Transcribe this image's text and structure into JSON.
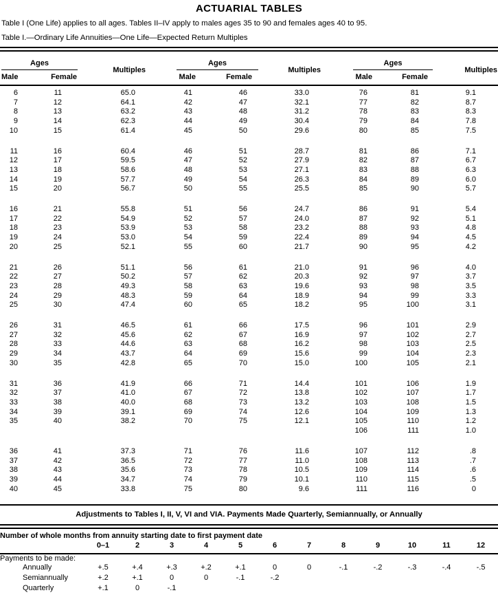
{
  "title": "ACTUARIAL TABLES",
  "note": "Table I (One Life) applies to all ages. Tables II–IV apply to males ages 35 to 90 and females ages 40 to 95.",
  "table1": {
    "caption": "Table I.—Ordinary Life Annuities—One Life—Expected Return Multiples",
    "headers": {
      "ages": "Ages",
      "male": "Male",
      "female": "Female",
      "multiples": "Multiples"
    },
    "column_order": [
      "male",
      "female",
      "multiples",
      "male",
      "female",
      "multiples",
      "male",
      "female",
      "multiples"
    ],
    "blocks": [
      [
        [
          "6",
          "11",
          "65.0",
          "41",
          "46",
          "33.0",
          "76",
          "81",
          "9.1"
        ],
        [
          "7",
          "12",
          "64.1",
          "42",
          "47",
          "32.1",
          "77",
          "82",
          "8.7"
        ],
        [
          "8",
          "13",
          "63.2",
          "43",
          "48",
          "31.2",
          "78",
          "83",
          "8.3"
        ],
        [
          "9",
          "14",
          "62.3",
          "44",
          "49",
          "30.4",
          "79",
          "84",
          "7.8"
        ],
        [
          "10",
          "15",
          "61.4",
          "45",
          "50",
          "29.6",
          "80",
          "85",
          "7.5"
        ]
      ],
      [
        [
          "11",
          "16",
          "60.4",
          "46",
          "51",
          "28.7",
          "81",
          "86",
          "7.1"
        ],
        [
          "12",
          "17",
          "59.5",
          "47",
          "52",
          "27.9",
          "82",
          "87",
          "6.7"
        ],
        [
          "13",
          "18",
          "58.6",
          "48",
          "53",
          "27.1",
          "83",
          "88",
          "6.3"
        ],
        [
          "14",
          "19",
          "57.7",
          "49",
          "54",
          "26.3",
          "84",
          "89",
          "6.0"
        ],
        [
          "15",
          "20",
          "56.7",
          "50",
          "55",
          "25.5",
          "85",
          "90",
          "5.7"
        ]
      ],
      [
        [
          "16",
          "21",
          "55.8",
          "51",
          "56",
          "24.7",
          "86",
          "91",
          "5.4"
        ],
        [
          "17",
          "22",
          "54.9",
          "52",
          "57",
          "24.0",
          "87",
          "92",
          "5.1"
        ],
        [
          "18",
          "23",
          "53.9",
          "53",
          "58",
          "23.2",
          "88",
          "93",
          "4.8"
        ],
        [
          "19",
          "24",
          "53.0",
          "54",
          "59",
          "22.4",
          "89",
          "94",
          "4.5"
        ],
        [
          "20",
          "25",
          "52.1",
          "55",
          "60",
          "21.7",
          "90",
          "95",
          "4.2"
        ]
      ],
      [
        [
          "21",
          "26",
          "51.1",
          "56",
          "61",
          "21.0",
          "91",
          "96",
          "4.0"
        ],
        [
          "22",
          "27",
          "50.2",
          "57",
          "62",
          "20.3",
          "92",
          "97",
          "3.7"
        ],
        [
          "23",
          "28",
          "49.3",
          "58",
          "63",
          "19.6",
          "93",
          "98",
          "3.5"
        ],
        [
          "24",
          "29",
          "48.3",
          "59",
          "64",
          "18.9",
          "94",
          "99",
          "3.3"
        ],
        [
          "25",
          "30",
          "47.4",
          "60",
          "65",
          "18.2",
          "95",
          "100",
          "3.1"
        ]
      ],
      [
        [
          "26",
          "31",
          "46.5",
          "61",
          "66",
          "17.5",
          "96",
          "101",
          "2.9"
        ],
        [
          "27",
          "32",
          "45.6",
          "62",
          "67",
          "16.9",
          "97",
          "102",
          "2.7"
        ],
        [
          "28",
          "33",
          "44.6",
          "63",
          "68",
          "16.2",
          "98",
          "103",
          "2.5"
        ],
        [
          "29",
          "34",
          "43.7",
          "64",
          "69",
          "15.6",
          "99",
          "104",
          "2.3"
        ],
        [
          "30",
          "35",
          "42.8",
          "65",
          "70",
          "15.0",
          "100",
          "105",
          "2.1"
        ]
      ],
      [
        [
          "31",
          "36",
          "41.9",
          "66",
          "71",
          "14.4",
          "101",
          "106",
          "1.9"
        ],
        [
          "32",
          "37",
          "41.0",
          "67",
          "72",
          "13.8",
          "102",
          "107",
          "1.7"
        ],
        [
          "33",
          "38",
          "40.0",
          "68",
          "73",
          "13.2",
          "103",
          "108",
          "1.5"
        ],
        [
          "34",
          "39",
          "39.1",
          "69",
          "74",
          "12.6",
          "104",
          "109",
          "1.3"
        ],
        [
          "35",
          "40",
          "38.2",
          "70",
          "75",
          "12.1",
          "105",
          "110",
          "1.2"
        ],
        [
          "",
          "",
          "",
          "",
          "",
          "",
          "106",
          "111",
          "1.0"
        ]
      ],
      [
        [
          "36",
          "41",
          "37.3",
          "71",
          "76",
          "11.6",
          "107",
          "112",
          ".8"
        ],
        [
          "37",
          "42",
          "36.5",
          "72",
          "77",
          "11.0",
          "108",
          "113",
          ".7"
        ],
        [
          "38",
          "43",
          "35.6",
          "73",
          "78",
          "10.5",
          "109",
          "114",
          ".6"
        ],
        [
          "39",
          "44",
          "34.7",
          "74",
          "79",
          "10.1",
          "110",
          "115",
          ".5"
        ],
        [
          "40",
          "45",
          "33.8",
          "75",
          "80",
          "9.6",
          "111",
          "116",
          "0"
        ]
      ]
    ]
  },
  "adjustments": {
    "title": "Adjustments to Tables I, II, V, VI and VIA. Payments Made Quarterly, Semiannually, or Annually",
    "months_header": "Number of whole months from annuity starting date to first payment date",
    "month_columns": [
      "0–1",
      "2",
      "3",
      "4",
      "5",
      "6",
      "7",
      "8",
      "9",
      "10",
      "11",
      "12"
    ],
    "row_group_label": "Payments to be made:",
    "rows": [
      {
        "label": "Annually",
        "values": [
          "+.5",
          "+.4",
          "+.3",
          "+.2",
          "+.1",
          "0",
          "0",
          "-.1",
          "-.2",
          "-.3",
          "-.4",
          "-.5"
        ]
      },
      {
        "label": "Semiannually",
        "values": [
          "+.2",
          "+.1",
          "0",
          "0",
          "-.1",
          "-.2",
          "",
          "",
          "",
          "",
          "",
          ""
        ]
      },
      {
        "label": "Quarterly",
        "values": [
          "+.1",
          "0",
          "-.1",
          "",
          "",
          "",
          "",
          "",
          "",
          "",
          "",
          ""
        ]
      }
    ]
  }
}
